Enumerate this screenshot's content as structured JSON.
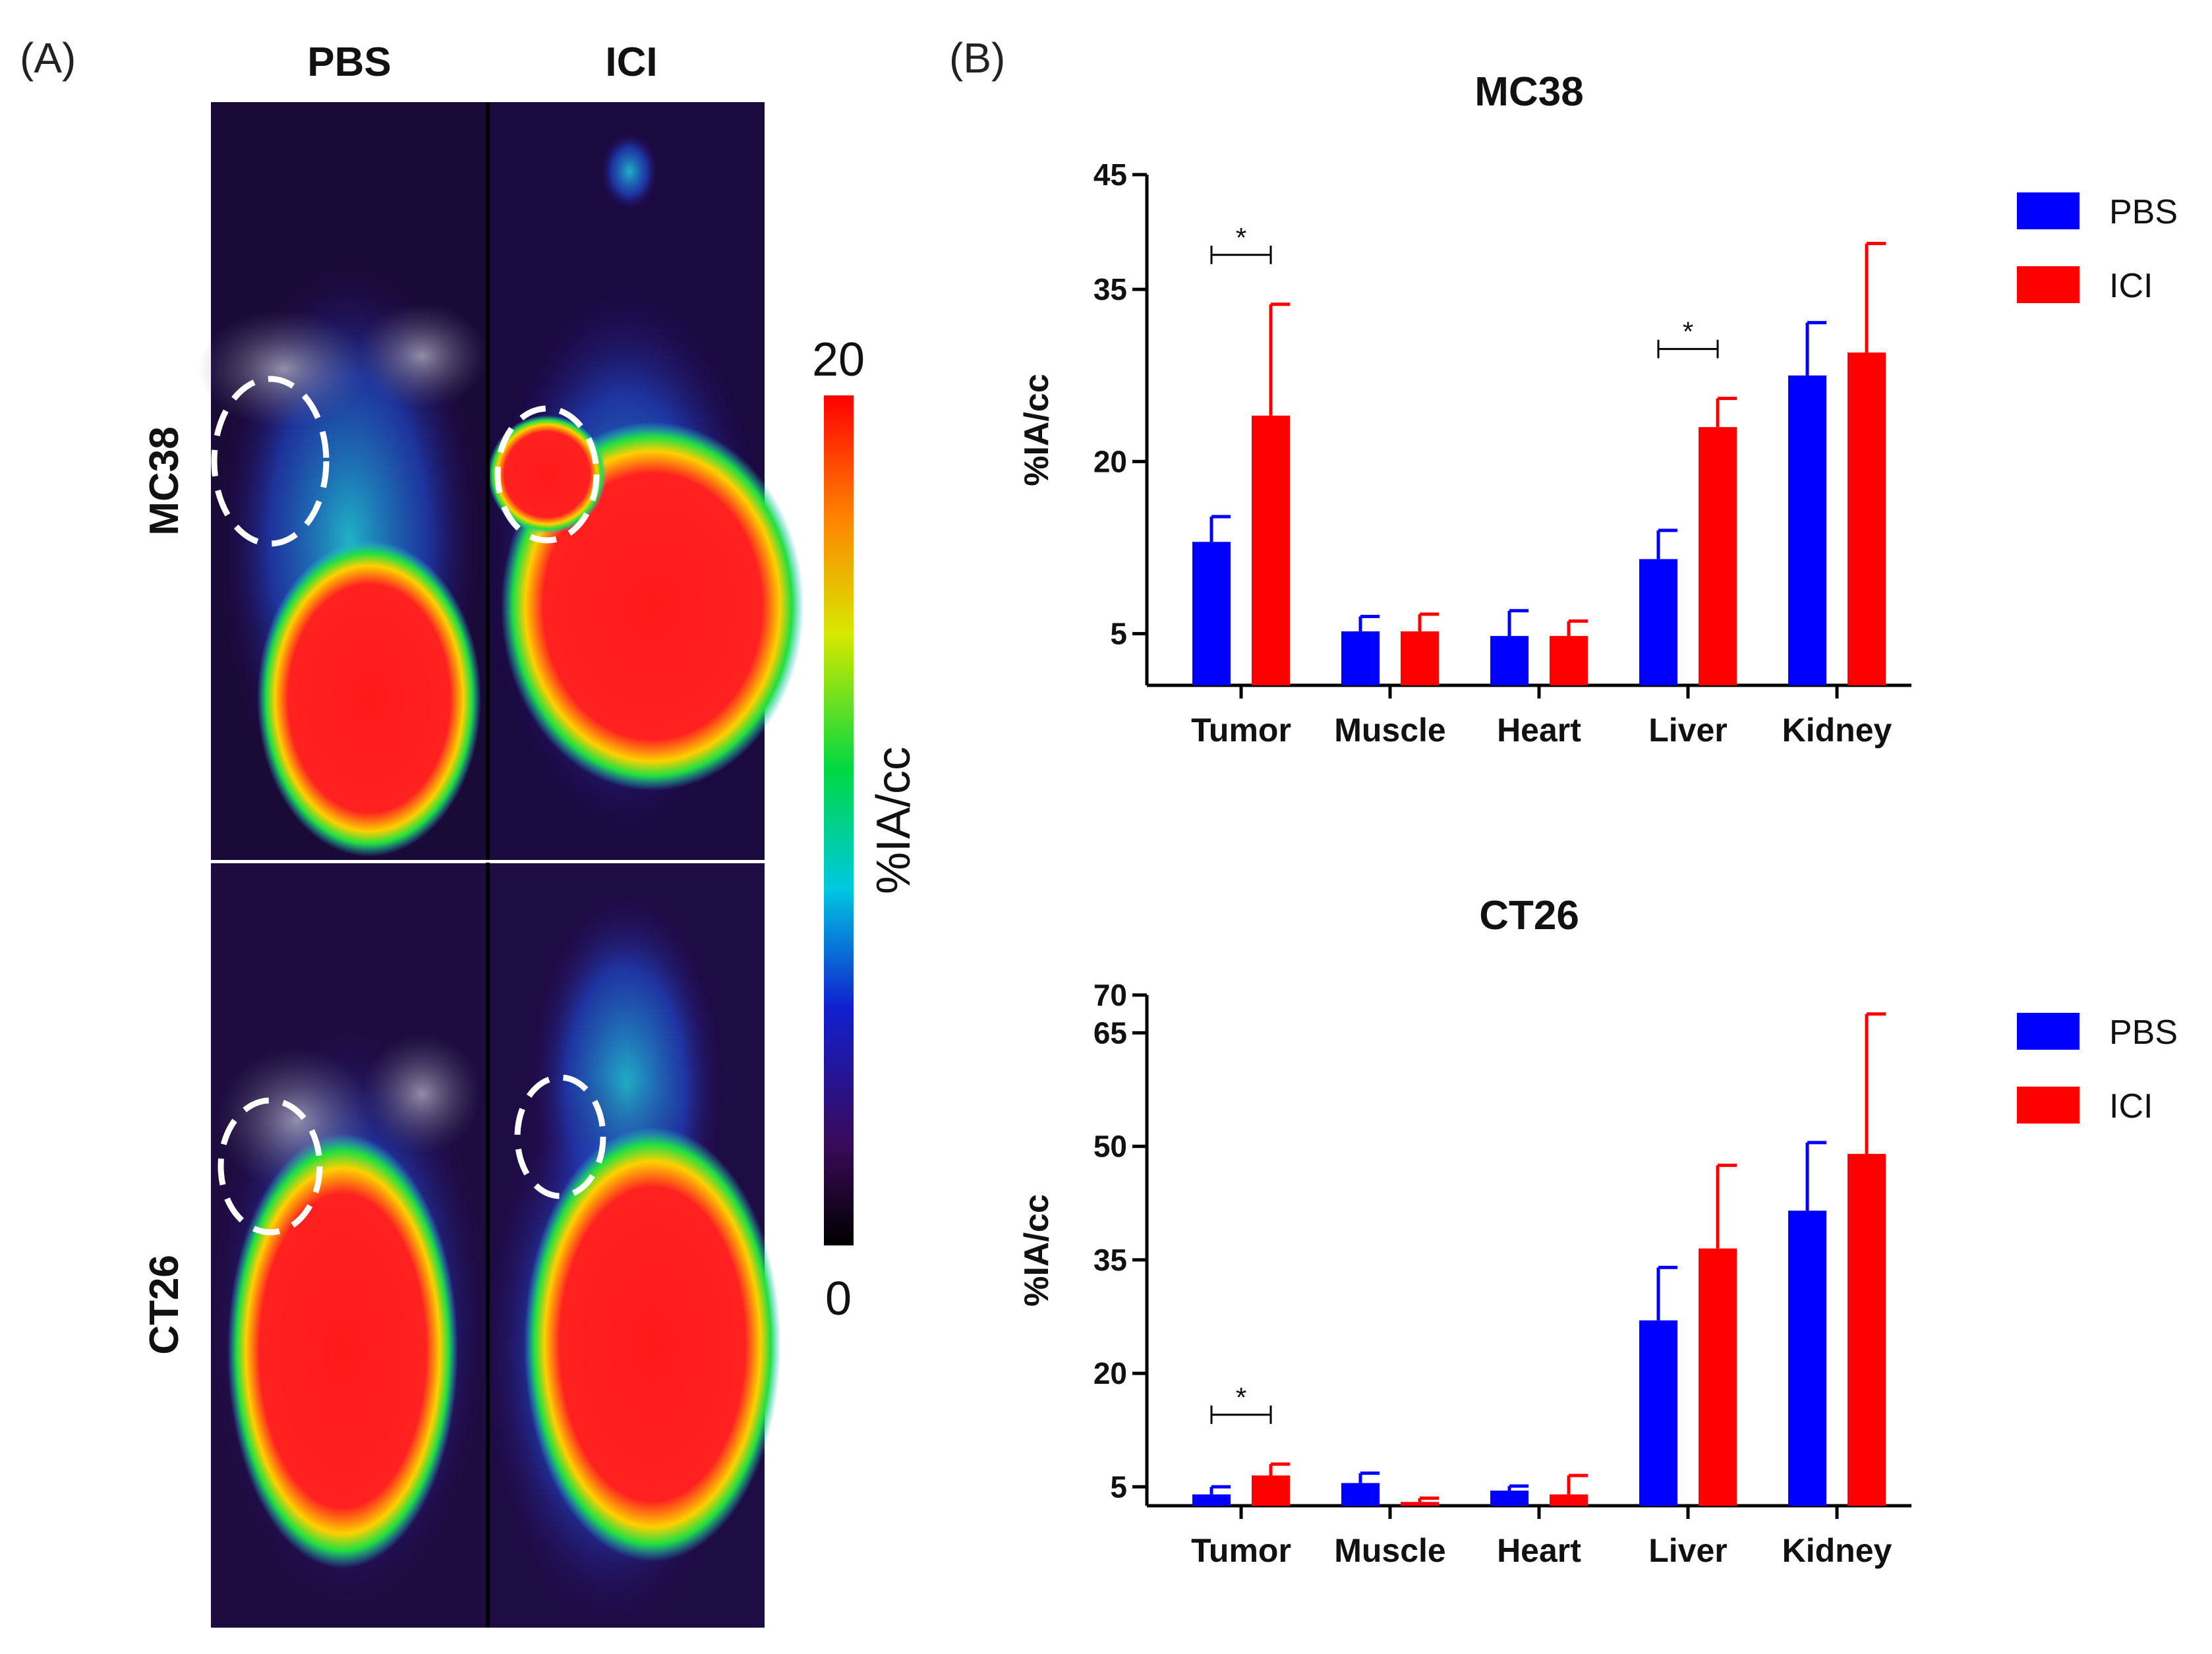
{
  "panel_a": {
    "label": "(A)",
    "columns": [
      "PBS",
      "ICI"
    ],
    "rows": [
      "MC38",
      "CT26"
    ],
    "colorbar": {
      "max_label": "20",
      "min_label": "0",
      "title": "%IA/cc"
    }
  },
  "panel_b": {
    "label": "(B)"
  },
  "colors": {
    "pbs": "#0000ff",
    "ici": "#ff0000"
  },
  "chart_data": [
    {
      "type": "bar",
      "title": "MC38",
      "ylabel": "%IA/cc",
      "xlabel": "",
      "categories": [
        "Tumor",
        "Muscle",
        "Heart",
        "Liver",
        "Kidney"
      ],
      "ylim": [
        0.5,
        45
      ],
      "yticks": [
        5,
        20,
        35,
        45
      ],
      "series": [
        {
          "name": "PBS",
          "values": [
            13,
            5.2,
            4.8,
            11.5,
            27.5
          ],
          "errors": [
            2.2,
            1.3,
            2.2,
            2.5,
            4.6
          ]
        },
        {
          "name": "ICI",
          "values": [
            24,
            5.2,
            4.8,
            23,
            29.5
          ],
          "errors": [
            9.7,
            1.5,
            1.3,
            2.5,
            9.5
          ]
        }
      ],
      "significance": [
        {
          "category": "Tumor",
          "label": "*"
        },
        {
          "category": "Liver",
          "label": "*"
        }
      ],
      "legend": "top-right"
    },
    {
      "type": "bar",
      "title": "CT26",
      "ylabel": "%IA/cc",
      "xlabel": "",
      "categories": [
        "Tumor",
        "Muscle",
        "Heart",
        "Liver",
        "Kidney"
      ],
      "ylim": [
        2.5,
        70
      ],
      "yticks": [
        5,
        20,
        35,
        50,
        65,
        70
      ],
      "series": [
        {
          "name": "PBS",
          "values": [
            4,
            5.5,
            4.5,
            27,
            41.5
          ],
          "errors": [
            1,
            1.3,
            0.6,
            7,
            9
          ]
        },
        {
          "name": "ICI",
          "values": [
            6.5,
            3,
            4,
            36.5,
            49
          ],
          "errors": [
            1.5,
            0.5,
            2.5,
            11,
            18.5
          ]
        }
      ],
      "significance": [
        {
          "category": "Tumor",
          "label": "*"
        }
      ],
      "legend": "top-right"
    }
  ]
}
